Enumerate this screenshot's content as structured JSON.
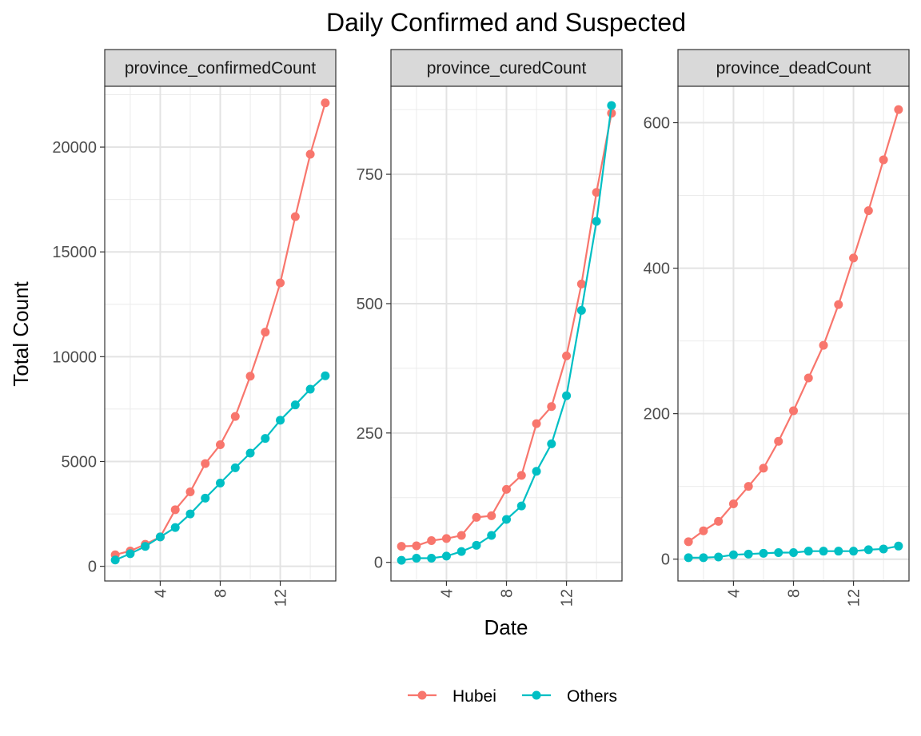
{
  "chart_data": {
    "type": "line",
    "title": "Daily Confirmed and Suspected",
    "xlabel": "Date",
    "ylabel": "Total Count",
    "legend_position": "bottom",
    "grid": true,
    "xlim": [
      0.3,
      15.7
    ],
    "x_ticks": [
      4,
      8,
      12
    ],
    "x": [
      1,
      2,
      3,
      4,
      5,
      6,
      7,
      8,
      9,
      10,
      11,
      12,
      13,
      14,
      15
    ],
    "legend": [
      {
        "name": "Hubei",
        "color": "#F8766D"
      },
      {
        "name": "Others",
        "color": "#00BFC4"
      }
    ],
    "panels": [
      {
        "strip": "province_confirmedCount",
        "ylim": [
          -700,
          22900
        ],
        "y_ticks": [
          0,
          5000,
          10000,
          15000,
          20000
        ],
        "y_tick_labels": [
          "0",
          "5000",
          "10000",
          "15000",
          "20000"
        ],
        "series": [
          {
            "name": "Hubei",
            "values": [
              550,
              730,
              1050,
              1400,
              2700,
              3550,
              4900,
              5800,
              7150,
              9070,
              11170,
              13520,
              16680,
              19660,
              22110
            ]
          },
          {
            "name": "Others",
            "values": [
              300,
              600,
              950,
              1400,
              1850,
              2500,
              3250,
              3970,
              4700,
              5400,
              6100,
              6970,
              7700,
              8450,
              9090
            ]
          }
        ]
      },
      {
        "strip": "province_curedCount",
        "ylim": [
          -36,
          920
        ],
        "y_ticks": [
          0,
          250,
          500,
          750
        ],
        "y_tick_labels": [
          "0",
          "250",
          "500",
          "750"
        ],
        "series": [
          {
            "name": "Hubei",
            "values": [
              31,
              32,
              42,
              46,
              52,
              87,
              90,
              141,
              168,
              268,
              301,
              399,
              538,
              715,
              868
            ]
          },
          {
            "name": "Others",
            "values": [
              4,
              8,
              8,
              12,
              21,
              33,
              52,
              83,
              109,
              176,
              229,
              322,
              487,
              659,
              883
            ]
          }
        ]
      },
      {
        "strip": "province_deadCount",
        "ylim": [
          -30,
          650
        ],
        "y_ticks": [
          0,
          200,
          400,
          600
        ],
        "y_tick_labels": [
          "0",
          "200",
          "400",
          "600"
        ],
        "series": [
          {
            "name": "Hubei",
            "values": [
              24,
              39,
              52,
              76,
              100,
              125,
              162,
              204,
              249,
              294,
              350,
              414,
              479,
              549,
              618
            ]
          },
          {
            "name": "Others",
            "values": [
              2,
              2,
              3,
              6,
              7,
              8,
              9,
              9,
              11,
              11,
              11,
              11,
              13,
              14,
              18
            ]
          }
        ]
      }
    ]
  }
}
